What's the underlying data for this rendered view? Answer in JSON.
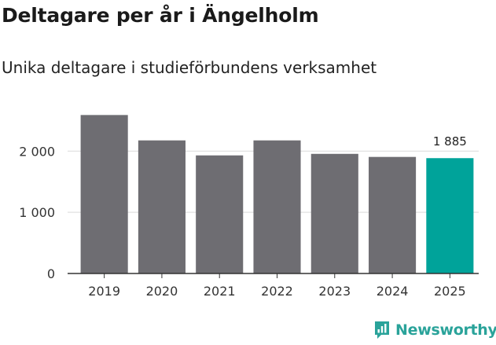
{
  "title": "Deltagare per år i Ängelholm",
  "subtitle": "Unika deltagare i studieförbundens verksamhet",
  "brand": {
    "name": "Newsworthy",
    "icon": "newsworthy-logo-icon",
    "color": "#2aa39a"
  },
  "chart_data": {
    "type": "bar",
    "categories": [
      "2019",
      "2020",
      "2021",
      "2022",
      "2023",
      "2024",
      "2025"
    ],
    "values": [
      2590,
      2175,
      1930,
      2175,
      1955,
      1905,
      1885
    ],
    "ylim": [
      0,
      2800
    ],
    "yticks": [
      0,
      1000,
      2000
    ],
    "ytick_labels": [
      "0",
      "1 000",
      "2 000"
    ],
    "grid": true,
    "colors": {
      "default": "#6e6d72",
      "highlight": "#00a39a"
    },
    "highlight_index": 6,
    "annotation": {
      "index": 6,
      "label": "1 885"
    }
  }
}
